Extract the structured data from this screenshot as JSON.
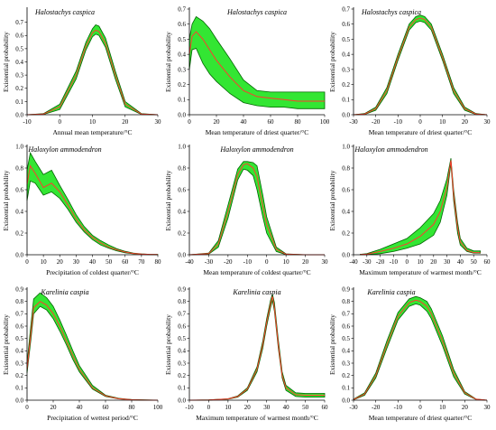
{
  "colors": {
    "band_fill": "#33e633",
    "band_edge": "#006400",
    "mean_line": "#ff3b2f",
    "axis": "#000000"
  },
  "ylabel": "Existential probability",
  "chart_data": [
    {
      "type": "area",
      "title": "Halostachys caspica",
      "xlabel": "Annual mean temperature/°C",
      "xlim": [
        -10,
        30
      ],
      "xticks": [
        -10,
        0,
        10,
        20,
        30
      ],
      "ylim": [
        0,
        0.8
      ],
      "yticks": [
        0.0,
        0.1,
        0.2,
        0.3,
        0.4,
        0.5,
        0.6,
        0.7
      ],
      "x": [
        -10,
        -5,
        0,
        5,
        8,
        10,
        11,
        12,
        14,
        17,
        20,
        25,
        30
      ],
      "mean": [
        0,
        0.005,
        0.06,
        0.3,
        0.52,
        0.62,
        0.64,
        0.63,
        0.54,
        0.3,
        0.08,
        0.005,
        0
      ],
      "lower": [
        0,
        0.002,
        0.04,
        0.27,
        0.49,
        0.59,
        0.61,
        0.6,
        0.51,
        0.27,
        0.06,
        0.002,
        0
      ],
      "upper": [
        0,
        0.008,
        0.08,
        0.33,
        0.55,
        0.65,
        0.68,
        0.67,
        0.58,
        0.33,
        0.1,
        0.008,
        0
      ]
    },
    {
      "type": "area",
      "title": "Halostachys caspica",
      "xlabel": "Mean temperature of driest quarter/°C",
      "xlim": [
        0,
        100
      ],
      "xticks": [
        0,
        20,
        40,
        60,
        80,
        100
      ],
      "ylim": [
        0,
        0.7
      ],
      "yticks": [
        0.0,
        0.1,
        0.2,
        0.3,
        0.4,
        0.5,
        0.6,
        0.7
      ],
      "x": [
        0,
        2,
        5,
        10,
        15,
        20,
        30,
        40,
        50,
        60,
        70,
        80,
        90,
        100
      ],
      "mean": [
        0.4,
        0.52,
        0.55,
        0.5,
        0.43,
        0.36,
        0.25,
        0.16,
        0.12,
        0.11,
        0.1,
        0.09,
        0.09,
        0.09
      ],
      "lower": [
        0.3,
        0.43,
        0.44,
        0.34,
        0.27,
        0.22,
        0.14,
        0.08,
        0.06,
        0.05,
        0.05,
        0.04,
        0.04,
        0.04
      ],
      "upper": [
        0.5,
        0.6,
        0.65,
        0.62,
        0.57,
        0.5,
        0.37,
        0.23,
        0.16,
        0.15,
        0.15,
        0.15,
        0.15,
        0.15
      ]
    },
    {
      "type": "area",
      "title": "Halostachys caspica",
      "xlabel": "Mean temperature of driest quarter/°C",
      "xlim": [
        -30,
        30
      ],
      "xticks": [
        -30,
        -20,
        -10,
        0,
        10,
        20,
        30
      ],
      "ylim": [
        0,
        0.7
      ],
      "yticks": [
        0.0,
        0.1,
        0.2,
        0.3,
        0.4,
        0.5,
        0.6,
        0.7
      ],
      "x": [
        -30,
        -25,
        -20,
        -15,
        -10,
        -5,
        -2,
        0,
        2,
        5,
        10,
        15,
        20,
        25,
        30
      ],
      "mean": [
        0,
        0.005,
        0.04,
        0.16,
        0.38,
        0.58,
        0.63,
        0.64,
        0.63,
        0.58,
        0.38,
        0.16,
        0.04,
        0.005,
        0
      ],
      "lower": [
        0,
        0.002,
        0.03,
        0.14,
        0.36,
        0.56,
        0.61,
        0.62,
        0.61,
        0.56,
        0.36,
        0.14,
        0.03,
        0.002,
        0
      ],
      "upper": [
        0,
        0.008,
        0.05,
        0.18,
        0.4,
        0.6,
        0.65,
        0.66,
        0.65,
        0.6,
        0.4,
        0.18,
        0.05,
        0.008,
        0
      ]
    },
    {
      "type": "area",
      "title": "Haloxylon ammodendron",
      "xlabel": "Precipitation of coldest quarter/°C",
      "xlim": [
        0,
        80
      ],
      "xticks": [
        0,
        10,
        20,
        30,
        40,
        50,
        60,
        70,
        80
      ],
      "ylim": [
        0,
        1.0
      ],
      "yticks": [
        0.0,
        0.2,
        0.4,
        0.6,
        0.8,
        1.0
      ],
      "x": [
        0,
        2,
        5,
        10,
        15,
        20,
        25,
        30,
        35,
        40,
        45,
        50,
        55,
        60,
        65,
        70,
        75,
        80
      ],
      "mean": [
        0.65,
        0.82,
        0.75,
        0.62,
        0.66,
        0.58,
        0.46,
        0.33,
        0.23,
        0.16,
        0.11,
        0.07,
        0.045,
        0.025,
        0.012,
        0.006,
        0.003,
        0.002
      ],
      "lower": [
        0.5,
        0.68,
        0.66,
        0.55,
        0.58,
        0.52,
        0.42,
        0.3,
        0.21,
        0.14,
        0.09,
        0.06,
        0.035,
        0.018,
        0.008,
        0.003,
        0.001,
        0
      ],
      "upper": [
        0.78,
        0.94,
        0.86,
        0.74,
        0.78,
        0.64,
        0.51,
        0.37,
        0.26,
        0.18,
        0.13,
        0.09,
        0.055,
        0.032,
        0.016,
        0.008,
        0.004,
        0.003
      ]
    },
    {
      "type": "area",
      "title": "Haloxylon ammodendron",
      "xlabel": "Mean temperature of coldest quarter/°C",
      "xlim": [
        -40,
        30
      ],
      "xticks": [
        -40,
        -30,
        -20,
        -10,
        0,
        10,
        20,
        30
      ],
      "ylim": [
        0,
        1.0
      ],
      "yticks": [
        0.0,
        0.2,
        0.4,
        0.6,
        0.8,
        1.0
      ],
      "x": [
        -40,
        -30,
        -25,
        -20,
        -15,
        -12,
        -10,
        -7,
        -5,
        -2,
        0,
        5,
        10,
        20,
        30
      ],
      "mean": [
        0,
        0.01,
        0.1,
        0.4,
        0.74,
        0.83,
        0.84,
        0.8,
        0.72,
        0.45,
        0.28,
        0.05,
        0.005,
        0,
        0
      ],
      "lower": [
        0,
        0.005,
        0.07,
        0.34,
        0.69,
        0.79,
        0.78,
        0.73,
        0.6,
        0.35,
        0.2,
        0.03,
        0.002,
        0,
        0
      ],
      "upper": [
        0,
        0.015,
        0.13,
        0.46,
        0.79,
        0.86,
        0.86,
        0.85,
        0.82,
        0.55,
        0.35,
        0.07,
        0.008,
        0,
        0
      ]
    },
    {
      "type": "area",
      "title": "Haloxylon ammodendron",
      "xlabel": "Maximum temperature of warmest month/°C",
      "xlim": [
        -40,
        60
      ],
      "xticks": [
        -40,
        -30,
        -20,
        -10,
        0,
        10,
        20,
        30,
        40,
        50,
        60
      ],
      "ylim": [
        0,
        1.0
      ],
      "yticks": [
        0.0,
        0.2,
        0.4,
        0.6,
        0.8,
        1.0
      ],
      "x": [
        -35,
        -30,
        -20,
        -10,
        0,
        10,
        20,
        25,
        30,
        33,
        35,
        38,
        40,
        45,
        50,
        55
      ],
      "mean": [
        0.002,
        0.005,
        0.03,
        0.06,
        0.1,
        0.17,
        0.28,
        0.4,
        0.62,
        0.87,
        0.55,
        0.25,
        0.12,
        0.04,
        0.02,
        0.02
      ],
      "lower": [
        0,
        0.002,
        0.01,
        0.03,
        0.06,
        0.1,
        0.18,
        0.3,
        0.55,
        0.84,
        0.5,
        0.2,
        0.09,
        0.03,
        0.015,
        0.015
      ],
      "upper": [
        0.004,
        0.01,
        0.05,
        0.1,
        0.15,
        0.25,
        0.38,
        0.5,
        0.7,
        0.89,
        0.6,
        0.3,
        0.15,
        0.06,
        0.035,
        0.035
      ]
    },
    {
      "type": "area",
      "title": "Karelinia caspia",
      "xlabel": "Precipitation of wettest period/°C",
      "xlim": [
        0,
        100
      ],
      "xticks": [
        0,
        20,
        40,
        60,
        80,
        100
      ],
      "ylim": [
        0,
        0.9
      ],
      "yticks": [
        0.0,
        0.1,
        0.2,
        0.3,
        0.4,
        0.5,
        0.6,
        0.7,
        0.8,
        0.9
      ],
      "x": [
        0,
        3,
        5,
        10,
        15,
        20,
        25,
        30,
        35,
        40,
        50,
        60,
        70,
        80,
        90,
        100
      ],
      "mean": [
        0.25,
        0.55,
        0.75,
        0.8,
        0.77,
        0.7,
        0.6,
        0.48,
        0.36,
        0.25,
        0.1,
        0.035,
        0.012,
        0.004,
        0.001,
        0
      ],
      "lower": [
        0.22,
        0.5,
        0.7,
        0.76,
        0.73,
        0.66,
        0.56,
        0.45,
        0.33,
        0.23,
        0.09,
        0.03,
        0.01,
        0.003,
        0.001,
        0
      ],
      "upper": [
        0.3,
        0.62,
        0.82,
        0.87,
        0.83,
        0.76,
        0.65,
        0.53,
        0.4,
        0.28,
        0.12,
        0.04,
        0.015,
        0.005,
        0.002,
        0
      ]
    },
    {
      "type": "area",
      "title": "Karelinia caspia",
      "xlabel": "Maximum temperature of warmest month/°C",
      "xlim": [
        -10,
        60
      ],
      "xticks": [
        -10,
        0,
        10,
        20,
        30,
        40,
        50,
        60
      ],
      "ylim": [
        0,
        0.9
      ],
      "yticks": [
        0.0,
        0.1,
        0.2,
        0.3,
        0.4,
        0.5,
        0.6,
        0.7,
        0.8,
        0.9
      ],
      "x": [
        -10,
        0,
        10,
        15,
        20,
        25,
        28,
        30,
        32,
        33,
        34,
        36,
        38,
        40,
        45,
        50,
        55,
        60
      ],
      "mean": [
        0,
        0.002,
        0.01,
        0.03,
        0.09,
        0.25,
        0.45,
        0.63,
        0.78,
        0.84,
        0.75,
        0.45,
        0.2,
        0.1,
        0.045,
        0.04,
        0.04,
        0.04
      ],
      "lower": [
        0,
        0.001,
        0.008,
        0.025,
        0.08,
        0.23,
        0.42,
        0.6,
        0.75,
        0.81,
        0.72,
        0.42,
        0.18,
        0.08,
        0.03,
        0.025,
        0.025,
        0.025
      ],
      "upper": [
        0,
        0.003,
        0.012,
        0.035,
        0.1,
        0.27,
        0.48,
        0.66,
        0.81,
        0.86,
        0.79,
        0.49,
        0.23,
        0.12,
        0.06,
        0.055,
        0.055,
        0.055
      ]
    },
    {
      "type": "area",
      "title": "Karelinia caspia",
      "xlabel": "Mean temperature of driest quarter/°C",
      "xlim": [
        -30,
        30
      ],
      "xticks": [
        -30,
        -20,
        -10,
        0,
        10,
        20,
        30
      ],
      "ylim": [
        0,
        0.9
      ],
      "yticks": [
        0.0,
        0.1,
        0.2,
        0.3,
        0.4,
        0.5,
        0.6,
        0.7,
        0.8,
        0.9
      ],
      "x": [
        -30,
        -25,
        -20,
        -15,
        -10,
        -5,
        -2,
        0,
        3,
        5,
        10,
        15,
        20,
        25,
        30
      ],
      "mean": [
        0.005,
        0.05,
        0.2,
        0.45,
        0.68,
        0.79,
        0.81,
        0.8,
        0.76,
        0.7,
        0.48,
        0.22,
        0.06,
        0.008,
        0
      ],
      "lower": [
        0.003,
        0.04,
        0.18,
        0.42,
        0.65,
        0.76,
        0.78,
        0.77,
        0.72,
        0.66,
        0.44,
        0.19,
        0.05,
        0.006,
        0
      ],
      "upper": [
        0.008,
        0.06,
        0.22,
        0.48,
        0.71,
        0.82,
        0.84,
        0.83,
        0.8,
        0.74,
        0.52,
        0.25,
        0.07,
        0.01,
        0
      ]
    }
  ]
}
